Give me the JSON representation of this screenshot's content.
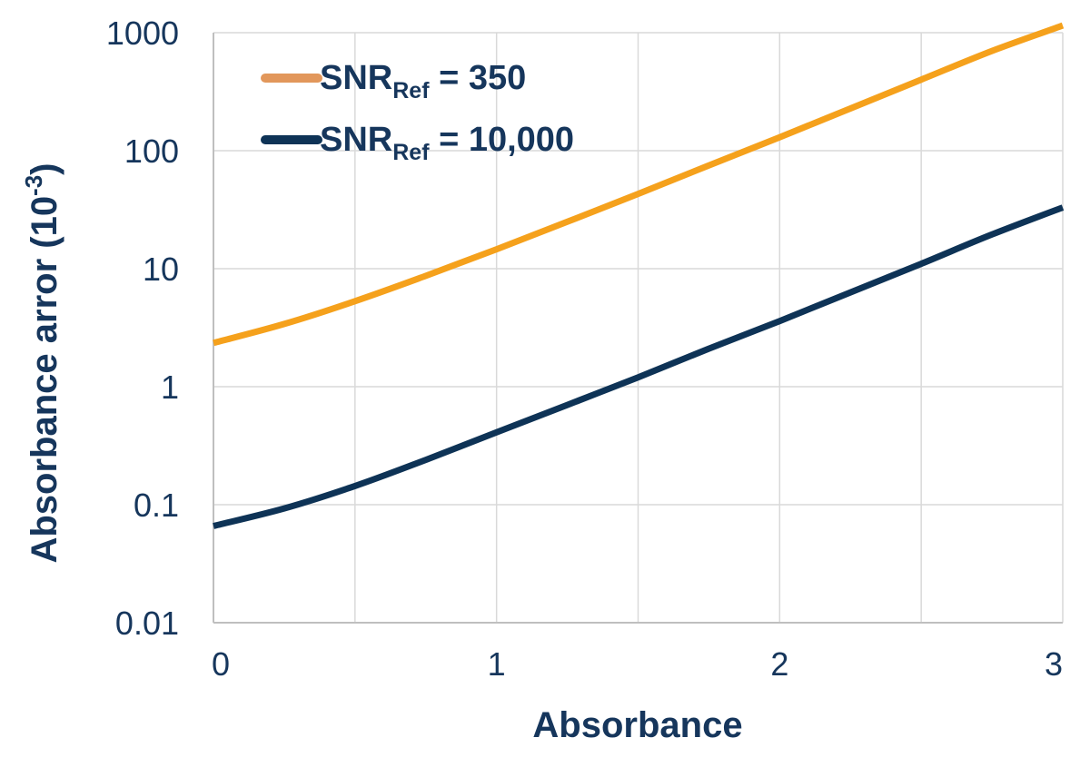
{
  "chart_data": {
    "type": "line",
    "xlabel": "Absorbance",
    "ylabel": "Absorbance arror (10",
    "ylabel_exponent": "-3",
    "ylabel_suffix": ")",
    "xlim": [
      0,
      3
    ],
    "ylim": [
      0.01,
      1000
    ],
    "yscale": "log",
    "grid": true,
    "legend_position": "top-left",
    "x_ticks": [
      "0",
      "1",
      "2",
      "3"
    ],
    "y_ticks": [
      "0.01",
      "0.1",
      "1",
      "10",
      "100",
      "1000"
    ],
    "x_tick_values": [
      0,
      1,
      2,
      3
    ],
    "y_tick_values": [
      0.01,
      0.1,
      1,
      10,
      100,
      1000
    ],
    "x": [
      0,
      0.25,
      0.5,
      0.75,
      1,
      1.25,
      1.5,
      1.75,
      2,
      2.25,
      2.5,
      2.75,
      3
    ],
    "series": [
      {
        "legend_main": "SNR",
        "legend_sub": "Ref",
        "legend_rest": " = 350",
        "color": "#f5a11c",
        "legend_color": "#e2975b",
        "values": [
          2.35,
          3.4,
          5.3,
          8.7,
          14.6,
          25,
          43,
          75,
          130,
          228,
          400,
          700,
          1150
        ]
      },
      {
        "legend_main": "SNR",
        "legend_sub": "Ref",
        "legend_rest": " = 10,000",
        "color": "#0e3356",
        "legend_color": "#0e3356",
        "values": [
          0.066,
          0.093,
          0.144,
          0.24,
          0.41,
          0.7,
          1.2,
          2.1,
          3.6,
          6.3,
          11,
          19.5,
          33
        ]
      }
    ]
  }
}
